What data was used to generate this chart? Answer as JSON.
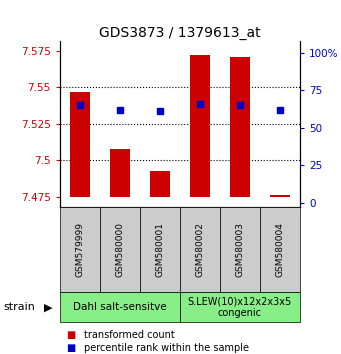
{
  "title": "GDS3873 / 1379613_at",
  "samples": [
    "GSM579999",
    "GSM580000",
    "GSM580001",
    "GSM580002",
    "GSM580003",
    "GSM580004"
  ],
  "transformed_counts": [
    7.547,
    7.508,
    7.493,
    7.572,
    7.571,
    7.476
  ],
  "percentile_ranks": [
    65,
    62,
    61,
    66,
    65,
    62
  ],
  "bar_bottom": 7.475,
  "ylim_left": [
    7.468,
    7.582
  ],
  "ylim_right": [
    -3,
    108
  ],
  "yticks_left": [
    7.475,
    7.5,
    7.525,
    7.55,
    7.575
  ],
  "yticks_right": [
    0,
    25,
    50,
    75,
    100
  ],
  "ytick_labels_left": [
    "7.475",
    "7.5",
    "7.525",
    "7.55",
    "7.575"
  ],
  "ytick_labels_right": [
    "0",
    "25",
    "50",
    "75",
    "100%"
  ],
  "grid_yticks": [
    7.5,
    7.525,
    7.55
  ],
  "bar_color": "#cc0000",
  "dot_color": "#0000cc",
  "group1_label": "Dahl salt-sensitve",
  "group2_label": "S.LEW(10)x12x2x3x5\ncongenic",
  "group_bg_color": "#88ee88",
  "sample_bg_color": "#cccccc",
  "legend_red_label": "transformed count",
  "legend_blue_label": "percentile rank within the sample",
  "strain_label": "strain",
  "bar_width": 0.5
}
